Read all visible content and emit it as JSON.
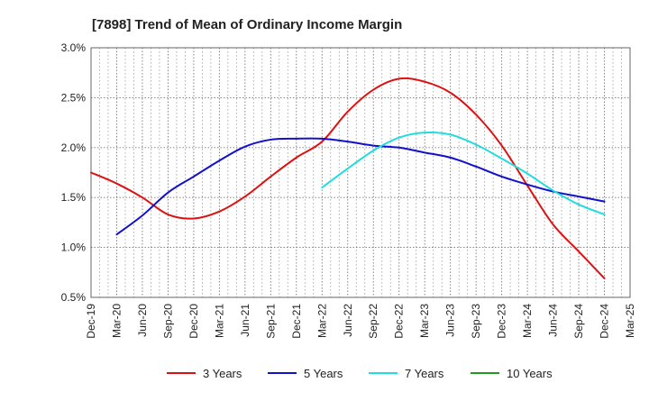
{
  "chart_data": {
    "type": "line",
    "title": "[7898]  Trend of Mean of Ordinary Income Margin",
    "xlabel": "",
    "ylabel": "",
    "categories": [
      "Dec-19",
      "Mar-20",
      "Jun-20",
      "Sep-20",
      "Dec-20",
      "Mar-21",
      "Jun-21",
      "Sep-21",
      "Dec-21",
      "Mar-22",
      "Jun-22",
      "Sep-22",
      "Dec-22",
      "Mar-23",
      "Jun-23",
      "Sep-23",
      "Dec-23",
      "Mar-24",
      "Jun-24",
      "Sep-24",
      "Dec-24",
      "Mar-25"
    ],
    "ylim": [
      0.5,
      3.0
    ],
    "yticks": [
      0.5,
      1.0,
      1.5,
      2.0,
      2.5,
      3.0
    ],
    "ytick_labels": [
      "0.5%",
      "1.0%",
      "1.5%",
      "2.0%",
      "2.5%",
      "3.0%"
    ],
    "grid": "dotted, vertical and horizontal",
    "legend_position": "bottom",
    "series": [
      {
        "name": "3 Years",
        "color": "#dd1111",
        "values": [
          1.75,
          1.64,
          1.5,
          1.33,
          1.29,
          1.36,
          1.51,
          1.71,
          1.9,
          2.06,
          2.36,
          2.58,
          2.69,
          2.66,
          2.55,
          2.33,
          2.02,
          1.62,
          1.23,
          0.96,
          0.69,
          null
        ]
      },
      {
        "name": "5 Years",
        "color": "#1111cc",
        "values": [
          null,
          1.13,
          1.32,
          1.55,
          1.71,
          1.87,
          2.01,
          2.08,
          2.09,
          2.09,
          2.06,
          2.02,
          2.0,
          1.95,
          1.9,
          1.81,
          1.71,
          1.63,
          1.56,
          1.51,
          1.46,
          null
        ]
      },
      {
        "name": "7 Years",
        "color": "#22dddd",
        "values": [
          null,
          null,
          null,
          null,
          null,
          null,
          null,
          null,
          null,
          1.6,
          1.79,
          1.97,
          2.1,
          2.15,
          2.13,
          2.03,
          1.89,
          1.74,
          1.57,
          1.43,
          1.33,
          null
        ]
      },
      {
        "name": "10 Years",
        "color": "#229922",
        "values": [
          null,
          null,
          null,
          null,
          null,
          null,
          null,
          null,
          null,
          null,
          null,
          null,
          null,
          null,
          null,
          null,
          null,
          null,
          null,
          null,
          null,
          null
        ]
      }
    ]
  }
}
